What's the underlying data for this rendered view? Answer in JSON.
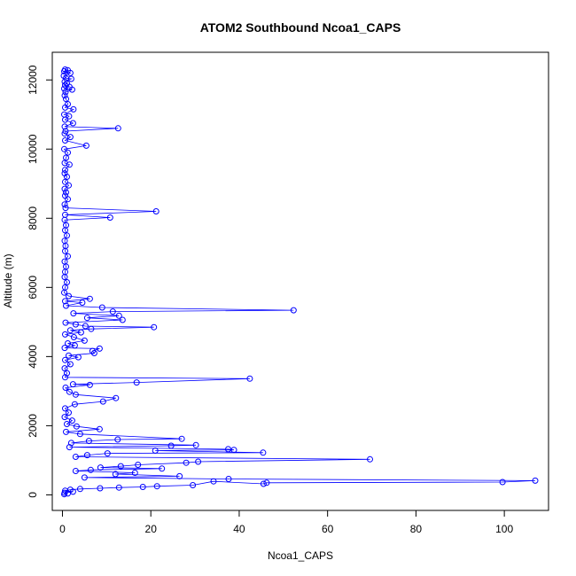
{
  "chart_data": {
    "type": "line",
    "title": "ATOM2 Southbound Ncoa1_CAPS",
    "xlabel": "Ncoa1_CAPS",
    "ylabel": "Altitude (m)",
    "xlim": [
      -2.3,
      110
    ],
    "ylim": [
      -450,
      12800
    ],
    "x_ticks": [
      0,
      20,
      40,
      60,
      80,
      100
    ],
    "y_ticks": [
      0,
      2000,
      4000,
      6000,
      8000,
      10000,
      12000
    ],
    "x_tick_labels": [
      "0",
      "20",
      "40",
      "60",
      "80",
      "100"
    ],
    "y_tick_labels": [
      "0",
      "2000",
      "4000",
      "6000",
      "8000",
      "10000",
      "12000"
    ],
    "grid": false,
    "legend": "none",
    "series_color": "#0000ff",
    "marker": "open-circle",
    "series": [
      {
        "name": "",
        "points": [
          [
            0.6,
            12300
          ],
          [
            1.2,
            12280
          ],
          [
            0.4,
            12250
          ],
          [
            1.8,
            12200
          ],
          [
            0.3,
            12120
          ],
          [
            0.8,
            12050
          ],
          [
            2.0,
            12030
          ],
          [
            0.5,
            11950
          ],
          [
            1.0,
            11900
          ],
          [
            0.6,
            11850
          ],
          [
            1.6,
            11800
          ],
          [
            0.4,
            11750
          ],
          [
            2.2,
            11720
          ],
          [
            0.7,
            11650
          ],
          [
            0.5,
            11550
          ],
          [
            0.8,
            11450
          ],
          [
            1.2,
            11300
          ],
          [
            0.6,
            11200
          ],
          [
            2.5,
            11150
          ],
          [
            0.4,
            11000
          ],
          [
            1.5,
            10950
          ],
          [
            0.6,
            10850
          ],
          [
            2.4,
            10750
          ],
          [
            0.5,
            10650
          ],
          [
            12.6,
            10600
          ],
          [
            0.7,
            10520
          ],
          [
            0.5,
            10450
          ],
          [
            1.8,
            10350
          ],
          [
            0.6,
            10250
          ],
          [
            5.4,
            10100
          ],
          [
            0.4,
            10000
          ],
          [
            1.2,
            9900
          ],
          [
            0.8,
            9750
          ],
          [
            0.5,
            9600
          ],
          [
            1.6,
            9550
          ],
          [
            0.6,
            9400
          ],
          [
            0.5,
            9300
          ],
          [
            1.0,
            9200
          ],
          [
            0.6,
            9050
          ],
          [
            1.4,
            8950
          ],
          [
            0.5,
            8850
          ],
          [
            0.8,
            8750
          ],
          [
            0.6,
            8650
          ],
          [
            1.2,
            8550
          ],
          [
            0.5,
            8400
          ],
          [
            0.7,
            8300
          ],
          [
            21.2,
            8200
          ],
          [
            0.6,
            8100
          ],
          [
            10.8,
            8020
          ],
          [
            0.5,
            7950
          ],
          [
            0.8,
            7800
          ],
          [
            0.6,
            7650
          ],
          [
            1.0,
            7500
          ],
          [
            0.5,
            7350
          ],
          [
            0.7,
            7200
          ],
          [
            0.6,
            7050
          ],
          [
            1.2,
            6900
          ],
          [
            0.5,
            6750
          ],
          [
            0.8,
            6600
          ],
          [
            0.6,
            6450
          ],
          [
            0.5,
            6300
          ],
          [
            1.0,
            6150
          ],
          [
            0.6,
            6000
          ],
          [
            0.4,
            5850
          ],
          [
            1.4,
            5750
          ],
          [
            6.2,
            5670
          ],
          [
            0.6,
            5600
          ],
          [
            4.5,
            5560
          ],
          [
            0.8,
            5470
          ],
          [
            9.0,
            5420
          ],
          [
            52.3,
            5340
          ],
          [
            11.4,
            5300
          ],
          [
            2.5,
            5250
          ],
          [
            12.8,
            5180
          ],
          [
            5.6,
            5120
          ],
          [
            13.6,
            5060
          ],
          [
            0.7,
            4980
          ],
          [
            3.0,
            4930
          ],
          [
            5.2,
            4880
          ],
          [
            20.7,
            4850
          ],
          [
            6.5,
            4800
          ],
          [
            1.8,
            4760
          ],
          [
            4.2,
            4700
          ],
          [
            0.6,
            4640
          ],
          [
            2.6,
            4560
          ],
          [
            5.0,
            4460
          ],
          [
            1.2,
            4380
          ],
          [
            2.8,
            4320
          ],
          [
            0.5,
            4250
          ],
          [
            8.4,
            4230
          ],
          [
            6.8,
            4160
          ],
          [
            7.2,
            4100
          ],
          [
            1.4,
            4030
          ],
          [
            3.6,
            3980
          ],
          [
            0.6,
            3900
          ],
          [
            1.8,
            3780
          ],
          [
            0.5,
            3660
          ],
          [
            1.0,
            3520
          ],
          [
            0.6,
            3400
          ],
          [
            42.4,
            3360
          ],
          [
            16.8,
            3250
          ],
          [
            2.4,
            3200
          ],
          [
            6.2,
            3180
          ],
          [
            0.7,
            3100
          ],
          [
            1.6,
            2980
          ],
          [
            3.0,
            2900
          ],
          [
            12.1,
            2800
          ],
          [
            9.2,
            2700
          ],
          [
            2.8,
            2620
          ],
          [
            0.6,
            2500
          ],
          [
            1.4,
            2380
          ],
          [
            0.5,
            2250
          ],
          [
            2.2,
            2150
          ],
          [
            1.0,
            2050
          ],
          [
            3.2,
            1980
          ],
          [
            8.4,
            1900
          ],
          [
            0.8,
            1820
          ],
          [
            4.0,
            1760
          ],
          [
            27.0,
            1620
          ],
          [
            12.5,
            1600
          ],
          [
            6.0,
            1560
          ],
          [
            2.0,
            1500
          ],
          [
            30.2,
            1440
          ],
          [
            24.6,
            1420
          ],
          [
            1.6,
            1380
          ],
          [
            37.5,
            1320
          ],
          [
            38.8,
            1300
          ],
          [
            21.0,
            1280
          ],
          [
            45.4,
            1220
          ],
          [
            10.2,
            1200
          ],
          [
            5.6,
            1150
          ],
          [
            3.0,
            1100
          ],
          [
            69.6,
            1030
          ],
          [
            30.7,
            960
          ],
          [
            28.0,
            930
          ],
          [
            17.1,
            870
          ],
          [
            13.2,
            830
          ],
          [
            8.6,
            790
          ],
          [
            22.5,
            760
          ],
          [
            6.4,
            720
          ],
          [
            3.0,
            690
          ],
          [
            16.4,
            640
          ],
          [
            12.0,
            600
          ],
          [
            26.5,
            540
          ],
          [
            5.0,
            500
          ],
          [
            37.6,
            460
          ],
          [
            107.0,
            410
          ],
          [
            99.6,
            370
          ],
          [
            46.2,
            350
          ],
          [
            45.5,
            320
          ],
          [
            34.2,
            390
          ],
          [
            29.5,
            280
          ],
          [
            21.4,
            250
          ],
          [
            18.2,
            230
          ],
          [
            12.8,
            210
          ],
          [
            8.5,
            190
          ],
          [
            4.0,
            170
          ],
          [
            1.8,
            150
          ],
          [
            0.6,
            120
          ],
          [
            2.4,
            90
          ],
          [
            0.5,
            60
          ],
          [
            1.2,
            40
          ],
          [
            0.4,
            20
          ]
        ]
      }
    ]
  }
}
